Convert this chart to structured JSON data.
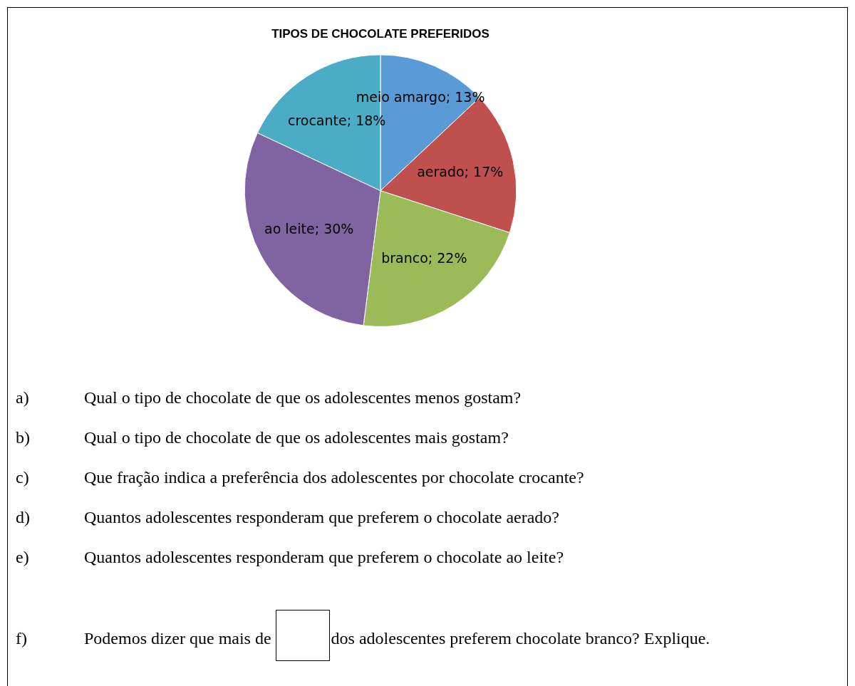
{
  "chart_data": {
    "type": "pie",
    "title": "TIPOS DE CHOCOLATE PREFERIDOS",
    "categories": [
      "meio amargo",
      "aerado",
      "branco",
      "ao leite",
      "crocante"
    ],
    "values": [
      13,
      17,
      22,
      30,
      18
    ],
    "colors": [
      "#5b9bd5",
      "#c0504d",
      "#9bbb59",
      "#8064a2",
      "#4bacc6"
    ],
    "value_labels": [
      "13%",
      "17%",
      "22%",
      "30%",
      "18%"
    ],
    "legend": false,
    "annotations": [
      "a)\tQual o tipo de chocolate de que os adolescentes menos gostam?",
      "b)\tQual o tipo de chocolate de que os adolescentes mais gostam?",
      "c)\tQue fração indica a preferência dos adolescentes por chocolate crocante?",
      "d)\tQuantos adolescentes responderam que preferem o chocolate aerado?",
      "e)\tQuantos adolescentes responderam que preferem o chocolate ao leite?",
      "f)\tPodemos dizer que mais de",
      "dos adolescentes preferem chocolate branco? Explique."
    ]
  }
}
